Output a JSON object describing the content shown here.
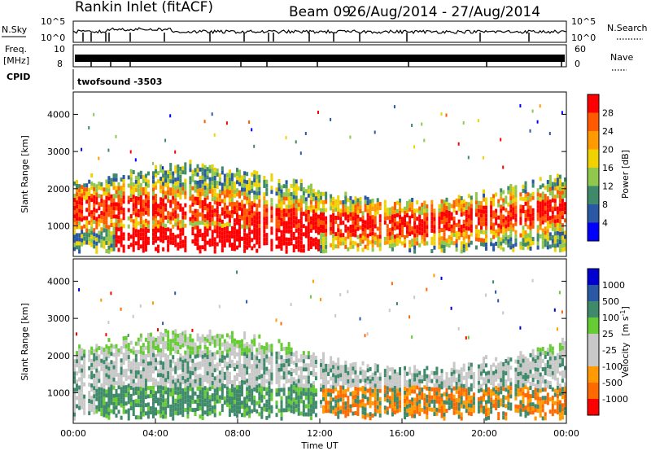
{
  "header": {
    "station": "Rankin Inlet (fitACF)",
    "beam": "Beam 09",
    "dates": "26/Aug/2014 - 27/Aug/2014"
  },
  "aux": {
    "nsky_label": "N.Sky",
    "nsky_ticks": [
      "10^5",
      "10^0"
    ],
    "nsearch_label": "N.Search",
    "nsearch_ticks": [
      "10^5",
      "10^0"
    ],
    "freq_label_1": "Freq.",
    "freq_label_2": "[MHz]",
    "freq_ticks": [
      "10",
      "8"
    ],
    "nave_label": "Nave",
    "nave_ticks": [
      "60",
      "0"
    ],
    "cpid_label": "CPID",
    "cpid_value": "twofsound -3503"
  },
  "colors": {
    "power": [
      "#0000ff",
      "#2a58a4",
      "#3f8a6a",
      "#8fc84c",
      "#f0d200",
      "#ff9a00",
      "#ff5a00",
      "#ff0000"
    ],
    "velocity": [
      "#ff0000",
      "#ff6a00",
      "#ff9a00",
      "#c8c8c8",
      "#c8c8c8",
      "#66cc33",
      "#3f8a6a",
      "#2a58a4",
      "#0000d0"
    ]
  },
  "chart_data": [
    {
      "type": "heatmap",
      "name": "power",
      "ylabel": "Slant Range [km]",
      "yticks": [
        "1000",
        "2000",
        "3000",
        "4000"
      ],
      "ylim": [
        180,
        4600
      ],
      "xlim": [
        0,
        24
      ],
      "colorbar": {
        "label": "Power [dB]",
        "ticks": [
          "4",
          "8",
          "12",
          "16",
          "20",
          "24",
          "28"
        ]
      }
    },
    {
      "type": "heatmap",
      "name": "velocity",
      "ylabel": "Slant Range [km]",
      "yticks": [
        "1000",
        "2000",
        "3000",
        "4000"
      ],
      "ylim": [
        180,
        4600
      ],
      "xlim": [
        0,
        24
      ],
      "xlabel": "Time UT",
      "xticks": [
        "00:00",
        "04:00",
        "08:00",
        "12:00",
        "16:00",
        "20:00",
        "00:00"
      ],
      "colorbar": {
        "label_main": "Velocity",
        "label_unit": "[m s",
        "label_sup": "-1",
        "label_close": "]",
        "ticks": [
          "1000",
          "500",
          "100",
          "25",
          "-25",
          "-100",
          "-500",
          "-1000"
        ]
      }
    }
  ]
}
